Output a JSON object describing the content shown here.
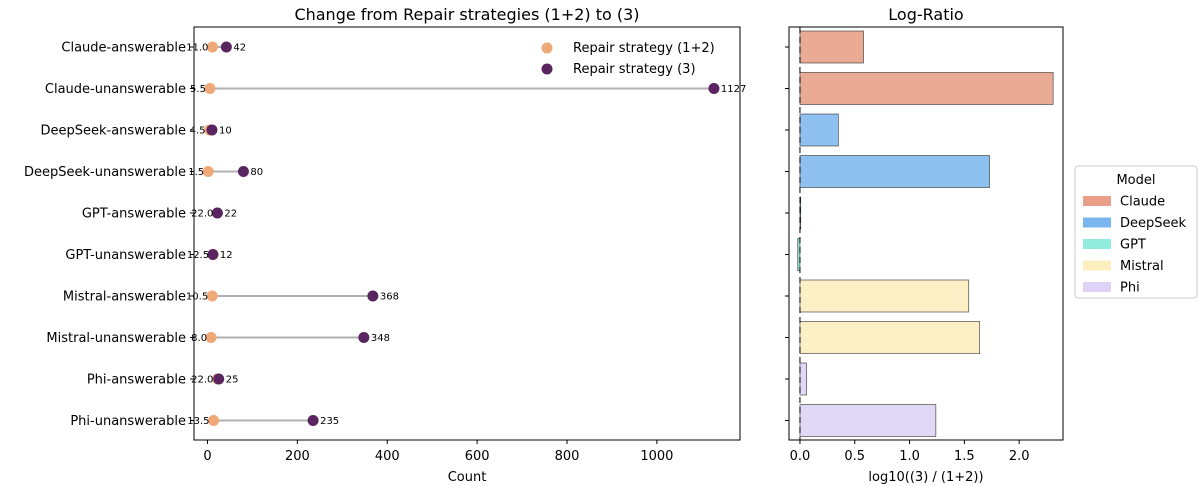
{
  "chart_data": [
    {
      "type": "dumbbell",
      "title": "Change from Repair strategies (1+2) to (3)",
      "xlabel": "Count",
      "ylabel": "",
      "xlim": [
        -30,
        1185
      ],
      "xticks": [
        0,
        200,
        400,
        600,
        800,
        1000
      ],
      "xtick_labels": [
        "0",
        "200",
        "400",
        "600",
        "800",
        "1000"
      ],
      "categories": [
        "Claude-answerable",
        "Claude-unanswerable",
        "DeepSeek-answerable",
        "DeepSeek-unanswerable",
        "GPT-answerable",
        "GPT-unanswerable",
        "Mistral-answerable",
        "Mistral-unanswerable",
        "Phi-answerable",
        "Phi-unanswerable"
      ],
      "series": [
        {
          "name": "Repair strategy (1+2)",
          "color": "#f0a878",
          "values": [
            11.0,
            5.5,
            4.5,
            1.5,
            22.0,
            12.5,
            10.5,
            8.0,
            22.0,
            13.5
          ],
          "labels": [
            "11.0",
            "5.5",
            "4.5",
            "1.5",
            "22.0",
            "12.5",
            "10.5",
            "8.0",
            "22.0",
            "13.5"
          ]
        },
        {
          "name": "Repair strategy (3)",
          "color": "#5a2461",
          "values": [
            42,
            1127,
            10,
            80,
            22,
            12,
            368,
            348,
            25,
            235
          ],
          "labels": [
            "42",
            "1127",
            "10",
            "80",
            "22",
            "12",
            "368",
            "348",
            "25",
            "235"
          ]
        }
      ],
      "connector_color": "#b0b0b0",
      "legend": "top-right",
      "grid": false
    },
    {
      "type": "barh",
      "title": "Log-Ratio",
      "xlabel": "log10((3) / (1+2))",
      "xlim": [
        -0.1,
        2.4
      ],
      "xticks": [
        0.0,
        0.5,
        1.0,
        1.5,
        2.0
      ],
      "xtick_labels": [
        "0.0",
        "0.5",
        "1.0",
        "1.5",
        "2.0"
      ],
      "categories": [
        "Claude-answerable",
        "Claude-unanswerable",
        "DeepSeek-answerable",
        "DeepSeek-unanswerable",
        "GPT-answerable",
        "GPT-unanswerable",
        "Mistral-answerable",
        "Mistral-unanswerable",
        "Phi-answerable",
        "Phi-unanswerable"
      ],
      "values": [
        0.58,
        2.31,
        0.35,
        1.73,
        0.0,
        -0.02,
        1.54,
        1.64,
        0.06,
        1.24
      ],
      "bar_models": [
        "Claude",
        "Claude",
        "DeepSeek",
        "DeepSeek",
        "GPT",
        "GPT",
        "Mistral",
        "Mistral",
        "Phi",
        "Phi"
      ],
      "bar_colors": {
        "Claude": "#eaab94",
        "DeepSeek": "#8ec0f0",
        "GPT": "#8ee6d4",
        "Mistral": "#fdefc5",
        "Phi": "#e0d8f4"
      },
      "reference_line": 0,
      "legend": {
        "title": "Model",
        "placement": "right",
        "items": [
          {
            "label": "Claude",
            "color": "#eaa088"
          },
          {
            "label": "DeepSeek",
            "color": "#7bb6ee"
          },
          {
            "label": "GPT",
            "color": "#90eddb"
          },
          {
            "label": "Mistral",
            "color": "#fdeec0"
          },
          {
            "label": "Phi",
            "color": "#ddd2f6"
          }
        ]
      },
      "grid": false
    }
  ]
}
